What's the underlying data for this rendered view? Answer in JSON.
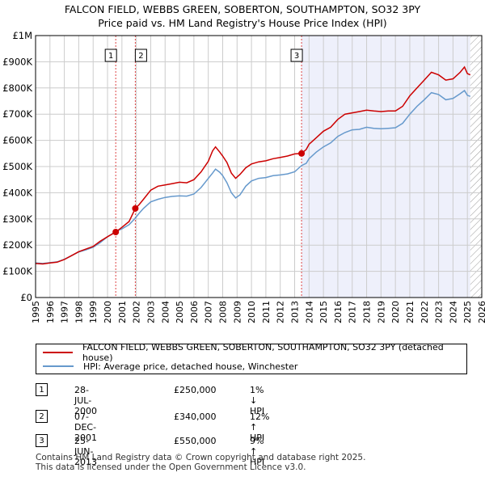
{
  "title_line1": "FALCON FIELD, WEBBS GREEN, SOBERTON, SOUTHAMPTON, SO32 3PY",
  "title_line2": "Price paid vs. HM Land Registry's House Price Index (HPI)",
  "colors": {
    "property": "#cc0000",
    "hpi": "#6699cc",
    "shade": "#eef0fb",
    "grid": "#cccccc"
  },
  "chart_data": {
    "type": "line",
    "x_range": [
      1995,
      2026
    ],
    "ylim": [
      0,
      1000000
    ],
    "y_ticks": [
      {
        "value": 0,
        "label": "£0"
      },
      {
        "value": 100000,
        "label": "£100K"
      },
      {
        "value": 200000,
        "label": "£200K"
      },
      {
        "value": 300000,
        "label": "£300K"
      },
      {
        "value": 400000,
        "label": "£400K"
      },
      {
        "value": 500000,
        "label": "£500K"
      },
      {
        "value": 600000,
        "label": "£600K"
      },
      {
        "value": 700000,
        "label": "£700K"
      },
      {
        "value": 800000,
        "label": "£800K"
      },
      {
        "value": 900000,
        "label": "£900K"
      },
      {
        "value": 1000000,
        "label": "£1M"
      }
    ],
    "x_ticks": [
      "1995",
      "1996",
      "1997",
      "1998",
      "1999",
      "2000",
      "2001",
      "2002",
      "2003",
      "2004",
      "2005",
      "2006",
      "2007",
      "2008",
      "2009",
      "2010",
      "2011",
      "2012",
      "2013",
      "2014",
      "2015",
      "2016",
      "2017",
      "2018",
      "2019",
      "2020",
      "2021",
      "2022",
      "2023",
      "2024",
      "2025",
      "2026"
    ],
    "shaded_from": 2013.48,
    "hatched_from": 2025.2,
    "series": [
      {
        "name": "FALCON FIELD, WEBBS GREEN, SOBERTON, SOUTHAMPTON, SO32 3PY (detached house)",
        "color": "#cc0000",
        "points": [
          [
            1995.0,
            130000
          ],
          [
            1995.5,
            128000
          ],
          [
            1996.0,
            132000
          ],
          [
            1996.5,
            135000
          ],
          [
            1997.0,
            145000
          ],
          [
            1997.5,
            160000
          ],
          [
            1998.0,
            175000
          ],
          [
            1998.5,
            185000
          ],
          [
            1999.0,
            195000
          ],
          [
            1999.5,
            215000
          ],
          [
            2000.0,
            232000
          ],
          [
            2000.57,
            250000
          ],
          [
            2001.0,
            268000
          ],
          [
            2001.5,
            290000
          ],
          [
            2001.93,
            340000
          ],
          [
            2002.2,
            355000
          ],
          [
            2002.5,
            375000
          ],
          [
            2003.0,
            410000
          ],
          [
            2003.5,
            425000
          ],
          [
            2004.0,
            430000
          ],
          [
            2004.5,
            435000
          ],
          [
            2005.0,
            440000
          ],
          [
            2005.5,
            438000
          ],
          [
            2006.0,
            450000
          ],
          [
            2006.5,
            480000
          ],
          [
            2007.0,
            520000
          ],
          [
            2007.3,
            560000
          ],
          [
            2007.5,
            575000
          ],
          [
            2007.8,
            555000
          ],
          [
            2008.0,
            540000
          ],
          [
            2008.3,
            515000
          ],
          [
            2008.6,
            475000
          ],
          [
            2008.9,
            455000
          ],
          [
            2009.2,
            470000
          ],
          [
            2009.6,
            495000
          ],
          [
            2010.0,
            510000
          ],
          [
            2010.5,
            518000
          ],
          [
            2011.0,
            522000
          ],
          [
            2011.5,
            530000
          ],
          [
            2012.0,
            535000
          ],
          [
            2012.5,
            540000
          ],
          [
            2013.0,
            548000
          ],
          [
            2013.48,
            550000
          ],
          [
            2013.8,
            565000
          ],
          [
            2014.0,
            585000
          ],
          [
            2014.5,
            610000
          ],
          [
            2015.0,
            635000
          ],
          [
            2015.5,
            650000
          ],
          [
            2016.0,
            680000
          ],
          [
            2016.5,
            700000
          ],
          [
            2017.0,
            705000
          ],
          [
            2017.5,
            710000
          ],
          [
            2018.0,
            715000
          ],
          [
            2018.5,
            712000
          ],
          [
            2019.0,
            710000
          ],
          [
            2019.5,
            712000
          ],
          [
            2020.0,
            712000
          ],
          [
            2020.5,
            730000
          ],
          [
            2021.0,
            770000
          ],
          [
            2021.5,
            800000
          ],
          [
            2022.0,
            830000
          ],
          [
            2022.5,
            860000
          ],
          [
            2023.0,
            850000
          ],
          [
            2023.5,
            830000
          ],
          [
            2024.0,
            835000
          ],
          [
            2024.5,
            860000
          ],
          [
            2024.8,
            880000
          ],
          [
            2025.0,
            855000
          ],
          [
            2025.2,
            850000
          ]
        ]
      },
      {
        "name": "HPI: Average price, detached house, Winchester",
        "color": "#6699cc",
        "points": [
          [
            1995.0,
            132000
          ],
          [
            1995.5,
            130000
          ],
          [
            1996.0,
            133000
          ],
          [
            1996.5,
            136000
          ],
          [
            1997.0,
            146000
          ],
          [
            1997.5,
            160000
          ],
          [
            1998.0,
            174000
          ],
          [
            1998.5,
            182000
          ],
          [
            1999.0,
            192000
          ],
          [
            1999.5,
            210000
          ],
          [
            2000.0,
            232000
          ],
          [
            2000.57,
            252000
          ],
          [
            2001.0,
            262000
          ],
          [
            2001.5,
            278000
          ],
          [
            2001.93,
            303000
          ],
          [
            2002.2,
            322000
          ],
          [
            2002.5,
            340000
          ],
          [
            2003.0,
            365000
          ],
          [
            2003.5,
            375000
          ],
          [
            2004.0,
            382000
          ],
          [
            2004.5,
            386000
          ],
          [
            2005.0,
            388000
          ],
          [
            2005.5,
            387000
          ],
          [
            2006.0,
            395000
          ],
          [
            2006.5,
            420000
          ],
          [
            2007.0,
            455000
          ],
          [
            2007.3,
            475000
          ],
          [
            2007.5,
            490000
          ],
          [
            2007.8,
            478000
          ],
          [
            2008.0,
            465000
          ],
          [
            2008.3,
            438000
          ],
          [
            2008.6,
            400000
          ],
          [
            2008.9,
            380000
          ],
          [
            2009.2,
            392000
          ],
          [
            2009.6,
            425000
          ],
          [
            2010.0,
            445000
          ],
          [
            2010.5,
            455000
          ],
          [
            2011.0,
            458000
          ],
          [
            2011.5,
            465000
          ],
          [
            2012.0,
            468000
          ],
          [
            2012.5,
            472000
          ],
          [
            2013.0,
            480000
          ],
          [
            2013.48,
            504000
          ],
          [
            2013.8,
            512000
          ],
          [
            2014.0,
            530000
          ],
          [
            2014.5,
            555000
          ],
          [
            2015.0,
            575000
          ],
          [
            2015.5,
            590000
          ],
          [
            2016.0,
            615000
          ],
          [
            2016.5,
            630000
          ],
          [
            2017.0,
            640000
          ],
          [
            2017.5,
            642000
          ],
          [
            2018.0,
            650000
          ],
          [
            2018.5,
            646000
          ],
          [
            2019.0,
            644000
          ],
          [
            2019.5,
            646000
          ],
          [
            2020.0,
            648000
          ],
          [
            2020.5,
            665000
          ],
          [
            2021.0,
            700000
          ],
          [
            2021.5,
            730000
          ],
          [
            2022.0,
            755000
          ],
          [
            2022.5,
            782000
          ],
          [
            2023.0,
            775000
          ],
          [
            2023.5,
            755000
          ],
          [
            2024.0,
            760000
          ],
          [
            2024.5,
            778000
          ],
          [
            2024.8,
            790000
          ],
          [
            2025.0,
            772000
          ],
          [
            2025.2,
            768000
          ]
        ]
      }
    ],
    "sales": [
      {
        "num": "1",
        "x": 2000.57,
        "y": 250000,
        "date": "28-JUL-2000",
        "price": "£250,000",
        "hpi": "1% ↓ HPI"
      },
      {
        "num": "2",
        "x": 2001.93,
        "y": 340000,
        "date": "07-DEC-2001",
        "price": "£340,000",
        "hpi": "12% ↑ HPI"
      },
      {
        "num": "3",
        "x": 2013.48,
        "y": 550000,
        "date": "25-JUN-2013",
        "price": "£550,000",
        "hpi": "9% ↑ HPI"
      }
    ]
  },
  "legend": {
    "property": "FALCON FIELD, WEBBS GREEN, SOBERTON, SOUTHAMPTON, SO32 3PY (detached house)",
    "hpi": "HPI: Average price, detached house, Winchester"
  },
  "footer_line1": "Contains HM Land Registry data © Crown copyright and database right 2025.",
  "footer_line2": "This data is licensed under the Open Government Licence v3.0."
}
